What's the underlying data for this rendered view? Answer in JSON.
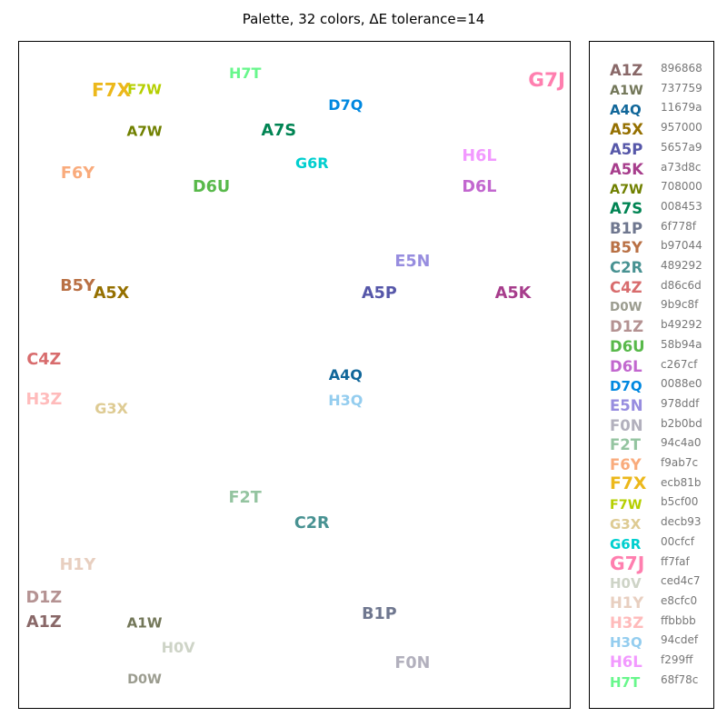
{
  "chart_data": {
    "type": "scatter",
    "title": "Palette, 32 colors, ΔE tolerance=14",
    "xlim": [
      0,
      1
    ],
    "ylim": [
      0,
      1
    ],
    "grid": false,
    "legend_placement": "right",
    "points": [
      {
        "label": "A1Z",
        "hex": "896868",
        "color": "#896868",
        "x": 0.045,
        "y": 0.129,
        "emphasis": 1.1
      },
      {
        "label": "A1W",
        "hex": "737759",
        "color": "#737759",
        "x": 0.227,
        "y": 0.129,
        "emphasis": 0.95
      },
      {
        "label": "A4Q",
        "hex": "11679a",
        "color": "#11679a",
        "x": 0.591,
        "y": 0.501,
        "emphasis": 1.0
      },
      {
        "label": "A5X",
        "hex": "957000",
        "color": "#957000",
        "x": 0.167,
        "y": 0.622,
        "emphasis": 1.1
      },
      {
        "label": "A5P",
        "hex": "5657a9",
        "color": "#5657a9",
        "x": 0.652,
        "y": 0.622,
        "emphasis": 1.1
      },
      {
        "label": "A5K",
        "hex": "a73d8c",
        "color": "#a73d8c",
        "x": 0.894,
        "y": 0.622,
        "emphasis": 1.1
      },
      {
        "label": "A7W",
        "hex": "708000",
        "color": "#708000",
        "x": 0.227,
        "y": 0.865,
        "emphasis": 0.95
      },
      {
        "label": "A7S",
        "hex": "008453",
        "color": "#008453",
        "x": 0.47,
        "y": 0.865,
        "emphasis": 1.1
      },
      {
        "label": "B1P",
        "hex": "6f778f",
        "color": "#6f778f",
        "x": 0.652,
        "y": 0.142,
        "emphasis": 1.1
      },
      {
        "label": "B5Y",
        "hex": "b97044",
        "color": "#b97044",
        "x": 0.106,
        "y": 0.633,
        "emphasis": 1.1
      },
      {
        "label": "C2R",
        "hex": "489292",
        "color": "#489292",
        "x": 0.53,
        "y": 0.278,
        "emphasis": 1.1
      },
      {
        "label": "C4Z",
        "hex": "d86c6d",
        "color": "#d86c6d",
        "x": 0.045,
        "y": 0.522,
        "emphasis": 1.1
      },
      {
        "label": "D0W",
        "hex": "9b9c8f",
        "color": "#9b9c8f",
        "x": 0.227,
        "y": 0.045,
        "emphasis": 0.9
      },
      {
        "label": "D1Z",
        "hex": "b49292",
        "color": "#b49292",
        "x": 0.045,
        "y": 0.166,
        "emphasis": 1.1
      },
      {
        "label": "D6U",
        "hex": "58b94a",
        "color": "#58b94a",
        "x": 0.348,
        "y": 0.781,
        "emphasis": 1.1
      },
      {
        "label": "D6L",
        "hex": "c267cf",
        "color": "#c267cf",
        "x": 0.833,
        "y": 0.781,
        "emphasis": 1.1
      },
      {
        "label": "D7Q",
        "hex": "0088e0",
        "color": "#0088e0",
        "x": 0.591,
        "y": 0.905,
        "emphasis": 1.0
      },
      {
        "label": "E5N",
        "hex": "978ddf",
        "color": "#978ddf",
        "x": 0.712,
        "y": 0.67,
        "emphasis": 1.1
      },
      {
        "label": "F0N",
        "hex": "b2b0bd",
        "color": "#b2b0bd",
        "x": 0.712,
        "y": 0.068,
        "emphasis": 1.1
      },
      {
        "label": "F2T",
        "hex": "94c4a0",
        "color": "#94c4a0",
        "x": 0.409,
        "y": 0.315,
        "emphasis": 1.1
      },
      {
        "label": "F6Y",
        "hex": "f9ab7c",
        "color": "#f9ab7c",
        "x": 0.106,
        "y": 0.802,
        "emphasis": 1.1
      },
      {
        "label": "F7X",
        "hex": "ecb81b",
        "color": "#ecb81b",
        "x": 0.167,
        "y": 0.928,
        "emphasis": 1.25
      },
      {
        "label": "F7W",
        "hex": "b5cf00",
        "color": "#b5cf00",
        "x": 0.227,
        "y": 0.928,
        "emphasis": 0.95
      },
      {
        "label": "G3X",
        "hex": "decb93",
        "color": "#decb93",
        "x": 0.167,
        "y": 0.45,
        "emphasis": 1.0
      },
      {
        "label": "G6R",
        "hex": "00cfcf",
        "color": "#00cfcf",
        "x": 0.53,
        "y": 0.818,
        "emphasis": 1.0
      },
      {
        "label": "G7J",
        "hex": "ff7faf",
        "color": "#ff7faf",
        "x": 0.955,
        "y": 0.942,
        "emphasis": 1.35
      },
      {
        "label": "H0V",
        "hex": "ced4c7",
        "color": "#ced4c7",
        "x": 0.288,
        "y": 0.092,
        "emphasis": 1.0
      },
      {
        "label": "H1Y",
        "hex": "e8cfc0",
        "color": "#e8cfc0",
        "x": 0.106,
        "y": 0.215,
        "emphasis": 1.1
      },
      {
        "label": "H3Z",
        "hex": "ffbbbb",
        "color": "#ffbbbb",
        "x": 0.045,
        "y": 0.462,
        "emphasis": 1.1
      },
      {
        "label": "H3Q",
        "hex": "94cdef",
        "color": "#94cdef",
        "x": 0.591,
        "y": 0.463,
        "emphasis": 1.0
      },
      {
        "label": "H6L",
        "hex": "f299ff",
        "color": "#f299ff",
        "x": 0.833,
        "y": 0.827,
        "emphasis": 1.1
      },
      {
        "label": "H7T",
        "hex": "68f78c",
        "color": "#68f78c",
        "x": 0.409,
        "y": 0.952,
        "emphasis": 1.0
      }
    ]
  }
}
